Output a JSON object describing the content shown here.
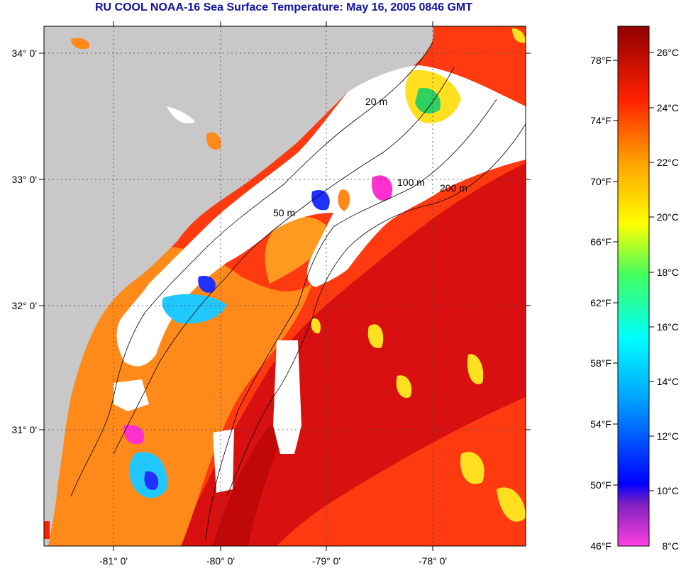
{
  "title": "RU COOL  NOAA-16  Sea Surface Temperature:  May 16, 2005 0846 GMT",
  "map": {
    "lat_labels": [
      "34° 0'",
      "33° 0'",
      "32° 0'",
      "31° 0'"
    ],
    "lon_labels": [
      "-81° 0'",
      "-80° 0'",
      "-79° 0'",
      "-78° 0'"
    ],
    "isobath_labels": [
      "20 m",
      "50 m",
      "100 m",
      "200 m"
    ],
    "colors": {
      "land": "#c8c8c8",
      "cloud": "#ffffff",
      "warm": "#ff3a10",
      "hot": "#c80808",
      "mid": "#ff8a1a",
      "cool": "#ffe020",
      "cold": "#20c8ff",
      "coldest": "#ff30d0"
    }
  },
  "colorbar": {
    "fahrenheit_labels": [
      "78°F",
      "74°F",
      "70°F",
      "66°F",
      "62°F",
      "58°F",
      "54°F",
      "50°F",
      "46°F"
    ],
    "celsius_labels": [
      "26°C",
      "24°C",
      "22°C",
      "20°C",
      "18°C",
      "16°C",
      "14°C",
      "12°C",
      "10°C",
      "8°C"
    ]
  }
}
